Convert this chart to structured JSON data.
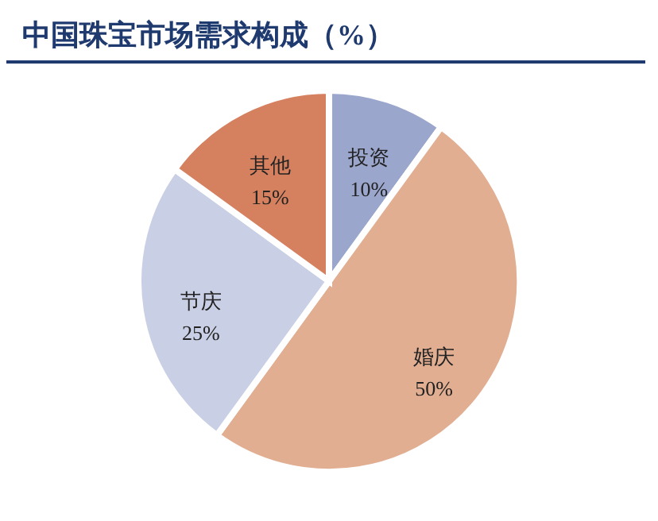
{
  "chart_data": {
    "type": "pie",
    "title": "中国珠宝市场需求构成（%）",
    "categories": [
      "投资",
      "婚庆",
      "节庆",
      "其他"
    ],
    "values": [
      10,
      50,
      25,
      15
    ],
    "value_labels": [
      "10%",
      "50%",
      "25%",
      "15%"
    ],
    "colors": [
      "#9ba6cd",
      "#e1ae91",
      "#c9cfe4",
      "#d5805f"
    ]
  }
}
